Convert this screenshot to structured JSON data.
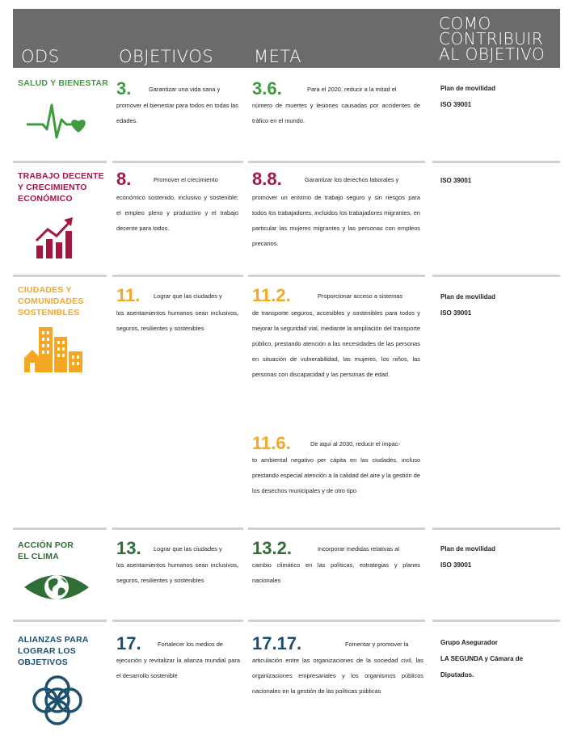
{
  "header": {
    "ods": "ODS",
    "objetivos": "OBJETIVOS",
    "meta": "META",
    "como_line1": "COMO",
    "como_line2": "CONTRIBUIR",
    "como_line3": "AL OBJETIVO"
  },
  "colors": {
    "header_bg": "#6b6b6b",
    "salud": "#3f9b3f",
    "trabajo": "#a3173f",
    "ciudades": "#f5a623",
    "clima": "#2f6e35",
    "alianzas": "#1d4f6e"
  },
  "rows": [
    {
      "ods_title": [
        "SALUD Y BIENESTAR"
      ],
      "icon": "heartbeat-icon",
      "obj_number": "3.",
      "obj_first": "Garantizar una vida sana y",
      "obj_rest": "promover el bienestar para todos en todas las edades.",
      "meta_number": "3.6.",
      "meta_first": "Para el 2020, reducir a la mitad el",
      "meta_rest": "número de muertes y lesiones causadas por accidentes de tráfico en el mundo.",
      "contrib": [
        "Plan de movilidad",
        "ISO 39001"
      ]
    },
    {
      "ods_title": [
        "TRABAJO DECENTE",
        "Y CRECIMIENTO",
        "ECONÓMICO"
      ],
      "icon": "growth-chart-icon",
      "obj_number": "8.",
      "obj_first": "Promover el crecimiento",
      "obj_rest": "económico sostenido, inclusivo y sostenible; el empleo pleno y productivo y el trabajo decente para todos.",
      "meta_number": "8.8.",
      "meta_first": "Garantizar los derechos laborales y",
      "meta_rest": "promover un entorno de trabajo seguro y sin riesgos para todos los trabajadores, incluidos los trabajadores migrantes, en particular las mujeres migrantes y las personas con empleos precarios.",
      "contrib": [
        "ISO 39001"
      ]
    },
    {
      "ods_title": [
        "CIUDADES Y",
        "COMUNIDADES",
        "SOSTENIBLES"
      ],
      "icon": "city-buildings-icon",
      "obj_number": "11.",
      "obj_first": "Lograr que las ciudades y",
      "obj_rest": "los asentamientos humanos sean inclusivos, seguros, resilientes y sostenibles",
      "meta_number": "11.2.",
      "meta_first": "Proporcionar acceso a sistemas",
      "meta_rest": "de transporte seguros, accesibles y sostenibles para todos y mejorar la seguridad vial, mediante la ampliación del transporte público, prestando atención a las necesidades de las personas en situación de vulnerabilidad, las mujeres, los niños, las personas con discapacidad y las personas de edad.",
      "meta2_number": "11.6.",
      "meta2_first": "De aquí al 2030, reducir el impac-",
      "meta2_rest": "to ambiental negativo per cápita en las ciudades, incluso prestando especial atención a la calidad del aire y la gestión de los desechos municipales y de otro tipo",
      "contrib": [
        "Plan de movilidad",
        "ISO 39001"
      ]
    },
    {
      "ods_title": [
        "ACCIÓN POR",
        "EL CLIMA"
      ],
      "icon": "earth-eye-icon",
      "obj_number": "13.",
      "obj_first": "Lograr que las ciudades y",
      "obj_rest": "los asentamientos humanos sean inclusivos, seguros, resilientes y sostenibles",
      "meta_number": "13.2.",
      "meta_first": "Incorporar medidas relativas al",
      "meta_rest": "cambio climático en las políticas, estrategias y planes nacionales",
      "contrib": [
        "Plan de movilidad",
        "ISO 39001"
      ]
    },
    {
      "ods_title": [
        "ALIANZAS PARA",
        "LOGRAR LOS",
        "OBJETIVOS"
      ],
      "icon": "interlocking-circles-icon",
      "obj_number": "17.",
      "obj_first": "Fortalecer los medios de",
      "obj_rest": "ejecución y revitalizar la alianza mundial para el desarrollo sostenible",
      "meta_number": "17.17.",
      "meta_first": "Fomentar y promover la",
      "meta_rest": "articulación entre las organizaciones de la sociedad civil, las organizaciones empresariales y los organismos públicos nacionales en la gestión de las políticas públicas",
      "contrib": [
        "Grupo Asegurador",
        "LA SEGUNDA y Cámara de",
        "Diputados."
      ]
    }
  ]
}
